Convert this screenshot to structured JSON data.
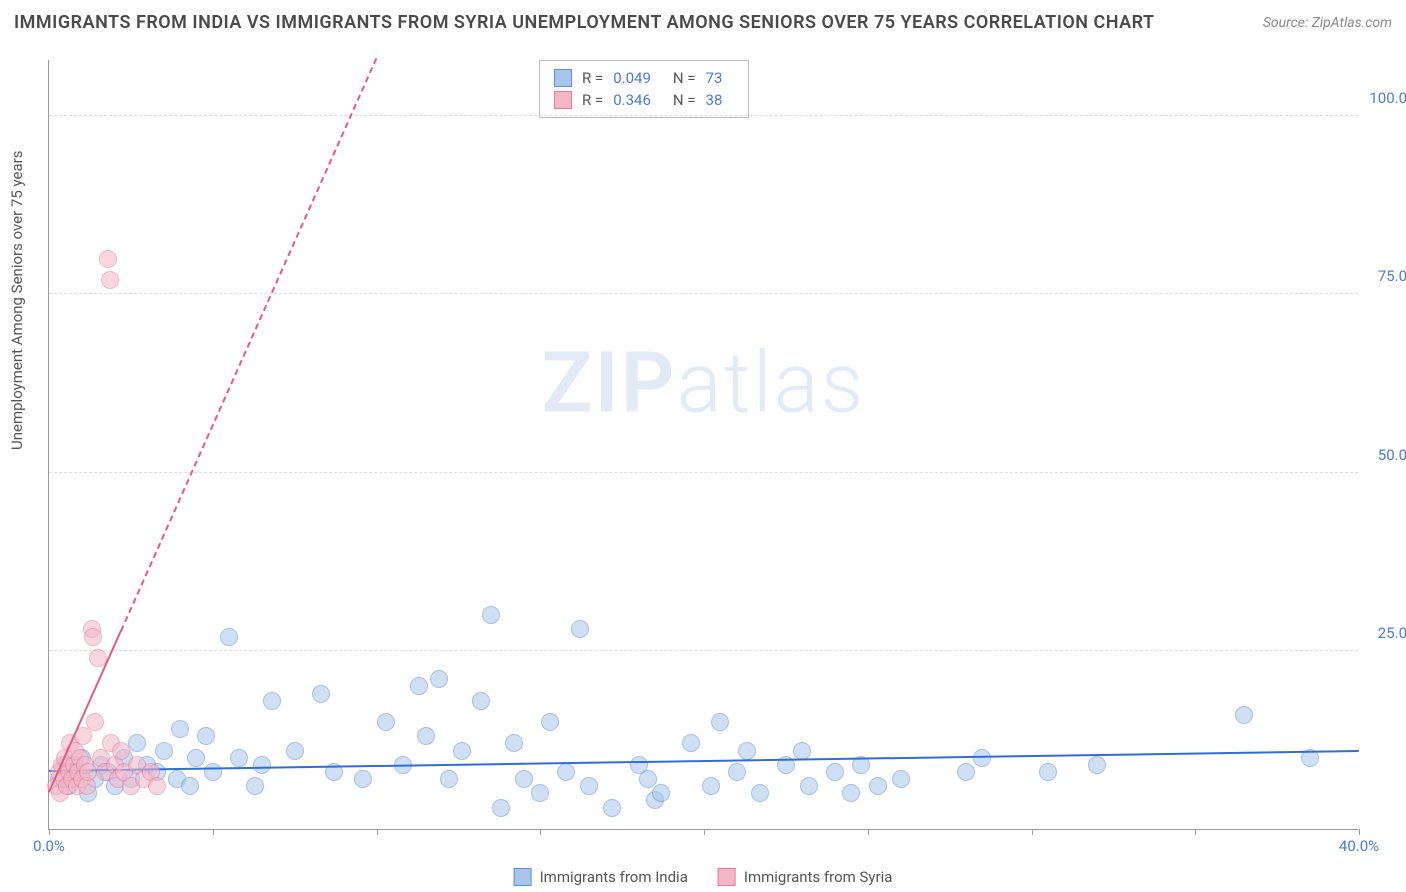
{
  "title": "IMMIGRANTS FROM INDIA VS IMMIGRANTS FROM SYRIA UNEMPLOYMENT AMONG SENIORS OVER 75 YEARS CORRELATION CHART",
  "source": "Source: ZipAtlas.com",
  "y_axis_label": "Unemployment Among Seniors over 75 years",
  "watermark_bold": "ZIP",
  "watermark_light": "atlas",
  "chart": {
    "type": "scatter",
    "xlim": [
      0,
      40
    ],
    "ylim": [
      0,
      108
    ],
    "x_ticks": [
      0,
      5,
      10,
      15,
      20,
      25,
      30,
      35,
      40
    ],
    "x_tick_labels": {
      "0": "0.0%",
      "40": "40.0%"
    },
    "y_ticks": [
      25,
      50,
      75,
      100
    ],
    "y_tick_labels": {
      "25": "25.0%",
      "50": "50.0%",
      "75": "75.0%",
      "100": "100.0%"
    },
    "background_color": "#ffffff",
    "grid_color": "#dddddd",
    "axis_color": "#999999",
    "tick_label_color": "#4a7bd0",
    "point_radius": 9,
    "point_opacity": 0.55,
    "series": [
      {
        "name": "Immigrants from India",
        "legend_label": "Immigrants from India",
        "color_fill": "#a8c5ec",
        "color_stroke": "#5b8fd6",
        "R_label": "R =",
        "R": "0.049",
        "N_label": "N =",
        "N": "73",
        "trend": {
          "x1": 0,
          "y1": 8.0,
          "x2": 40,
          "y2": 10.8,
          "color": "#2e6fd6",
          "width": 2.5,
          "dashed_after_x": null
        },
        "points": [
          [
            0.3,
            7
          ],
          [
            0.5,
            9
          ],
          [
            0.6,
            6
          ],
          [
            0.8,
            8
          ],
          [
            1.0,
            10
          ],
          [
            1.2,
            5
          ],
          [
            1.4,
            7
          ],
          [
            1.6,
            9
          ],
          [
            1.8,
            8
          ],
          [
            2.0,
            6
          ],
          [
            2.3,
            10
          ],
          [
            2.5,
            7
          ],
          [
            2.7,
            12
          ],
          [
            3.0,
            9
          ],
          [
            3.3,
            8
          ],
          [
            3.5,
            11
          ],
          [
            3.9,
            7
          ],
          [
            4.0,
            14
          ],
          [
            4.3,
            6
          ],
          [
            4.5,
            10
          ],
          [
            4.8,
            13
          ],
          [
            5.0,
            8
          ],
          [
            5.5,
            27
          ],
          [
            5.8,
            10
          ],
          [
            6.3,
            6
          ],
          [
            6.5,
            9
          ],
          [
            6.8,
            18
          ],
          [
            7.5,
            11
          ],
          [
            8.3,
            19
          ],
          [
            8.7,
            8
          ],
          [
            9.6,
            7
          ],
          [
            10.3,
            15
          ],
          [
            10.8,
            9
          ],
          [
            11.3,
            20
          ],
          [
            11.5,
            13
          ],
          [
            11.9,
            21
          ],
          [
            12.2,
            7
          ],
          [
            12.6,
            11
          ],
          [
            13.2,
            18
          ],
          [
            13.5,
            30
          ],
          [
            13.8,
            3
          ],
          [
            14.2,
            12
          ],
          [
            14.5,
            7
          ],
          [
            15.0,
            5
          ],
          [
            15.3,
            15
          ],
          [
            15.8,
            8
          ],
          [
            16.2,
            28
          ],
          [
            16.5,
            6
          ],
          [
            17.2,
            3
          ],
          [
            18.0,
            9
          ],
          [
            18.3,
            7
          ],
          [
            18.5,
            4
          ],
          [
            18.7,
            5
          ],
          [
            19.6,
            12
          ],
          [
            20.2,
            6
          ],
          [
            20.5,
            15
          ],
          [
            21.0,
            8
          ],
          [
            21.3,
            11
          ],
          [
            21.7,
            5
          ],
          [
            22.5,
            9
          ],
          [
            23.0,
            11
          ],
          [
            23.2,
            6
          ],
          [
            24.0,
            8
          ],
          [
            24.5,
            5
          ],
          [
            24.8,
            9
          ],
          [
            25.3,
            6
          ],
          [
            26.0,
            7
          ],
          [
            28.0,
            8
          ],
          [
            28.5,
            10
          ],
          [
            30.5,
            8
          ],
          [
            32.0,
            9
          ],
          [
            36.5,
            16
          ],
          [
            38.5,
            10
          ]
        ]
      },
      {
        "name": "Immigrants from Syria",
        "legend_label": "Immigrants from Syria",
        "color_fill": "#f4b6c7",
        "color_stroke": "#e57a9a",
        "R_label": "R =",
        "R": "0.346",
        "N_label": "N =",
        "N": "38",
        "trend": {
          "x1": 0,
          "y1": 5,
          "x2": 10,
          "y2": 108,
          "color": "#e35a85",
          "width": 2.5,
          "dashed_after_x": 2.2
        },
        "points": [
          [
            0.2,
            6
          ],
          [
            0.3,
            8
          ],
          [
            0.35,
            5
          ],
          [
            0.4,
            9
          ],
          [
            0.45,
            7
          ],
          [
            0.5,
            10
          ],
          [
            0.55,
            6
          ],
          [
            0.6,
            8
          ],
          [
            0.65,
            12
          ],
          [
            0.7,
            7
          ],
          [
            0.75,
            9
          ],
          [
            0.8,
            11
          ],
          [
            0.85,
            6
          ],
          [
            0.9,
            8
          ],
          [
            0.95,
            10
          ],
          [
            1.0,
            7
          ],
          [
            1.05,
            13
          ],
          [
            1.1,
            9
          ],
          [
            1.15,
            6
          ],
          [
            1.2,
            8
          ],
          [
            1.3,
            28
          ],
          [
            1.35,
            27
          ],
          [
            1.4,
            15
          ],
          [
            1.5,
            24
          ],
          [
            1.6,
            10
          ],
          [
            1.7,
            8
          ],
          [
            1.8,
            80
          ],
          [
            1.85,
            77
          ],
          [
            1.9,
            12
          ],
          [
            2.0,
            9
          ],
          [
            2.1,
            7
          ],
          [
            2.2,
            11
          ],
          [
            2.3,
            8
          ],
          [
            2.5,
            6
          ],
          [
            2.7,
            9
          ],
          [
            2.9,
            7
          ],
          [
            3.1,
            8
          ],
          [
            3.3,
            6
          ]
        ]
      }
    ]
  }
}
